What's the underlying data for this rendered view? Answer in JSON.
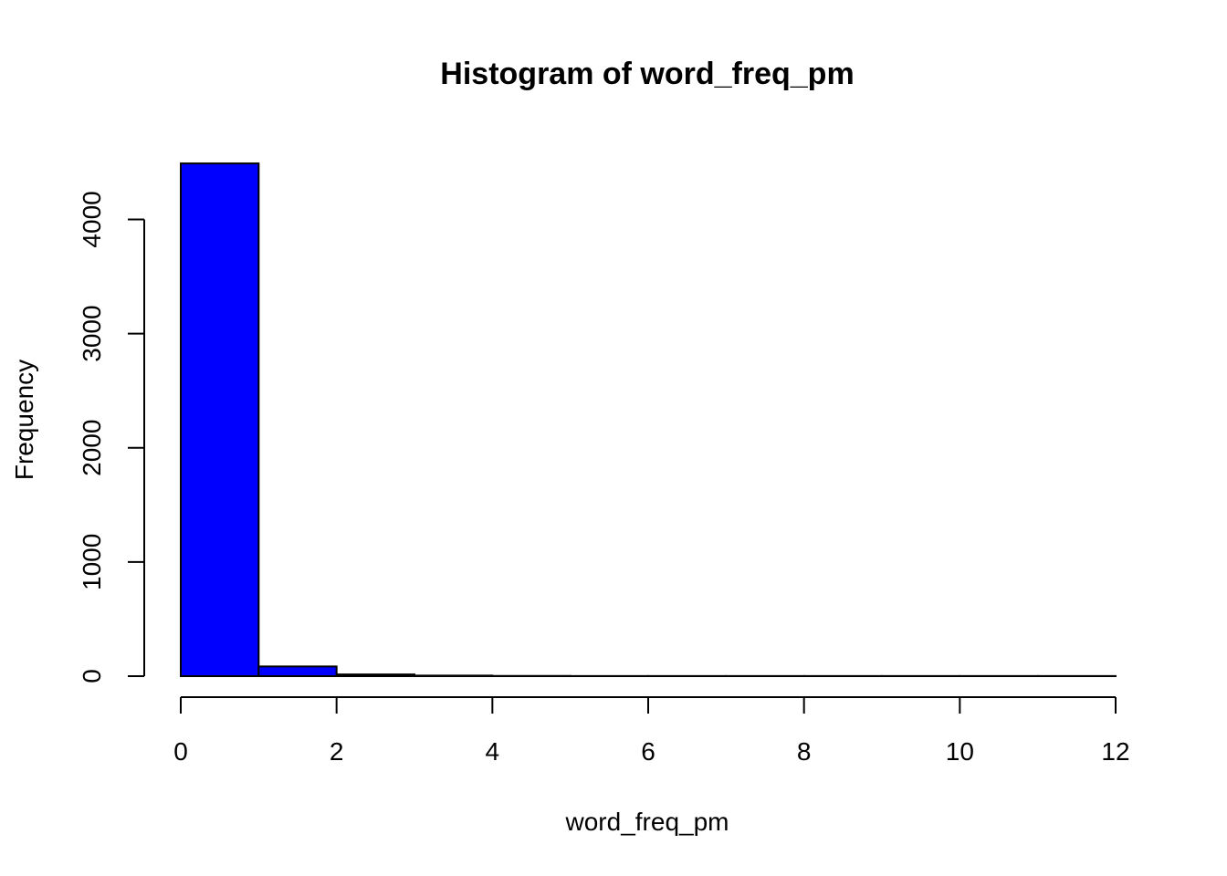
{
  "chart_data": {
    "type": "bar",
    "title": "Histogram of word_freq_pm",
    "xlabel": "word_freq_pm",
    "ylabel": "Frequency",
    "bins": [
      {
        "from": 0,
        "to": 1,
        "count": 4490
      },
      {
        "from": 1,
        "to": 2,
        "count": 85
      },
      {
        "from": 2,
        "to": 3,
        "count": 15
      },
      {
        "from": 3,
        "to": 4,
        "count": 5
      },
      {
        "from": 4,
        "to": 5,
        "count": 2
      },
      {
        "from": 5,
        "to": 6,
        "count": 1
      },
      {
        "from": 6,
        "to": 7,
        "count": 1
      },
      {
        "from": 7,
        "to": 8,
        "count": 1
      },
      {
        "from": 8,
        "to": 9,
        "count": 1
      },
      {
        "from": 9,
        "to": 10,
        "count": 1
      },
      {
        "from": 10,
        "to": 11,
        "count": 1
      },
      {
        "from": 11,
        "to": 12,
        "count": 1
      }
    ],
    "x_ticks": [
      "0",
      "2",
      "4",
      "6",
      "8",
      "10",
      "12"
    ],
    "y_ticks": [
      "0",
      "1000",
      "2000",
      "3000",
      "4000"
    ],
    "xlim": [
      0,
      12
    ],
    "ylim": [
      0,
      4500
    ],
    "grid": false,
    "colors": {
      "bar_fill": "#0000ff",
      "bar_border": "#000000"
    }
  }
}
